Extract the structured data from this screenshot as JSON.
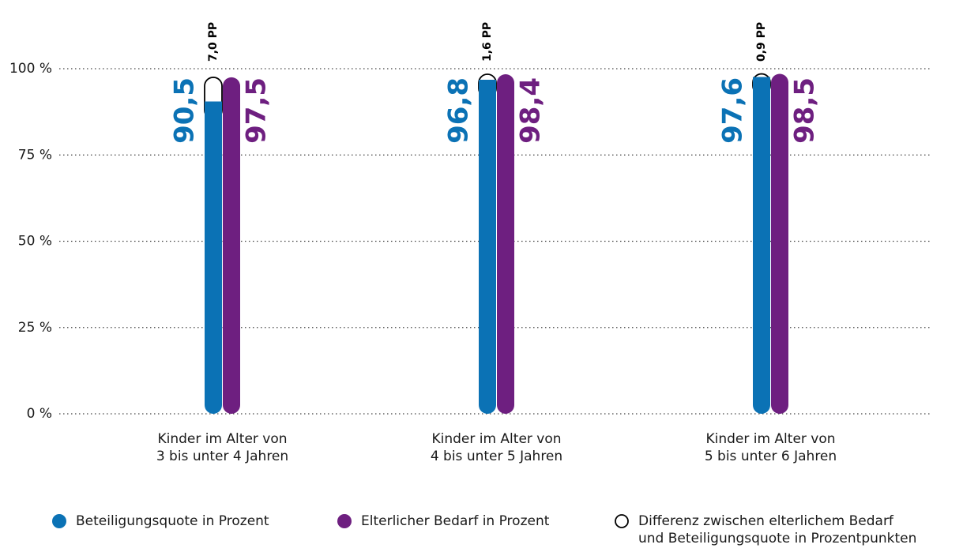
{
  "chart_data": {
    "type": "bar",
    "categories": [
      "Kinder im Alter von\n3 bis unter 4 Jahren",
      "Kinder im Alter von\n4 bis unter 5 Jahren",
      "Kinder im Alter von\n5 bis unter 6 Jahren"
    ],
    "series": [
      {
        "name": "Beteiligungsquote in Prozent",
        "color": "#0b72b5",
        "values": [
          90.5,
          96.8,
          97.6
        ],
        "value_labels": [
          "90,5",
          "96,8",
          "97,6"
        ]
      },
      {
        "name": "Elterlicher Bedarf in Prozent",
        "color": "#6e1f80",
        "values": [
          97.5,
          98.4,
          98.5
        ],
        "value_labels": [
          "97,5",
          "98,4",
          "98,5"
        ]
      },
      {
        "name": "Differenz zwischen elterlichem Bedarf\nund Beteiligungsquote in Prozentpunkten",
        "color": "#000000",
        "values": [
          7.0,
          1.6,
          0.9
        ],
        "value_labels": [
          "7,0 PP",
          "1,6 PP",
          "0,9 PP"
        ]
      }
    ],
    "ylim": [
      0,
      100
    ],
    "yticks": [
      {
        "value": 0,
        "label": "0 %"
      },
      {
        "value": 25,
        "label": "25 %"
      },
      {
        "value": 50,
        "label": "50 %"
      },
      {
        "value": 75,
        "label": "75 %"
      },
      {
        "value": 100,
        "label": "100 %"
      }
    ],
    "grid": true
  }
}
